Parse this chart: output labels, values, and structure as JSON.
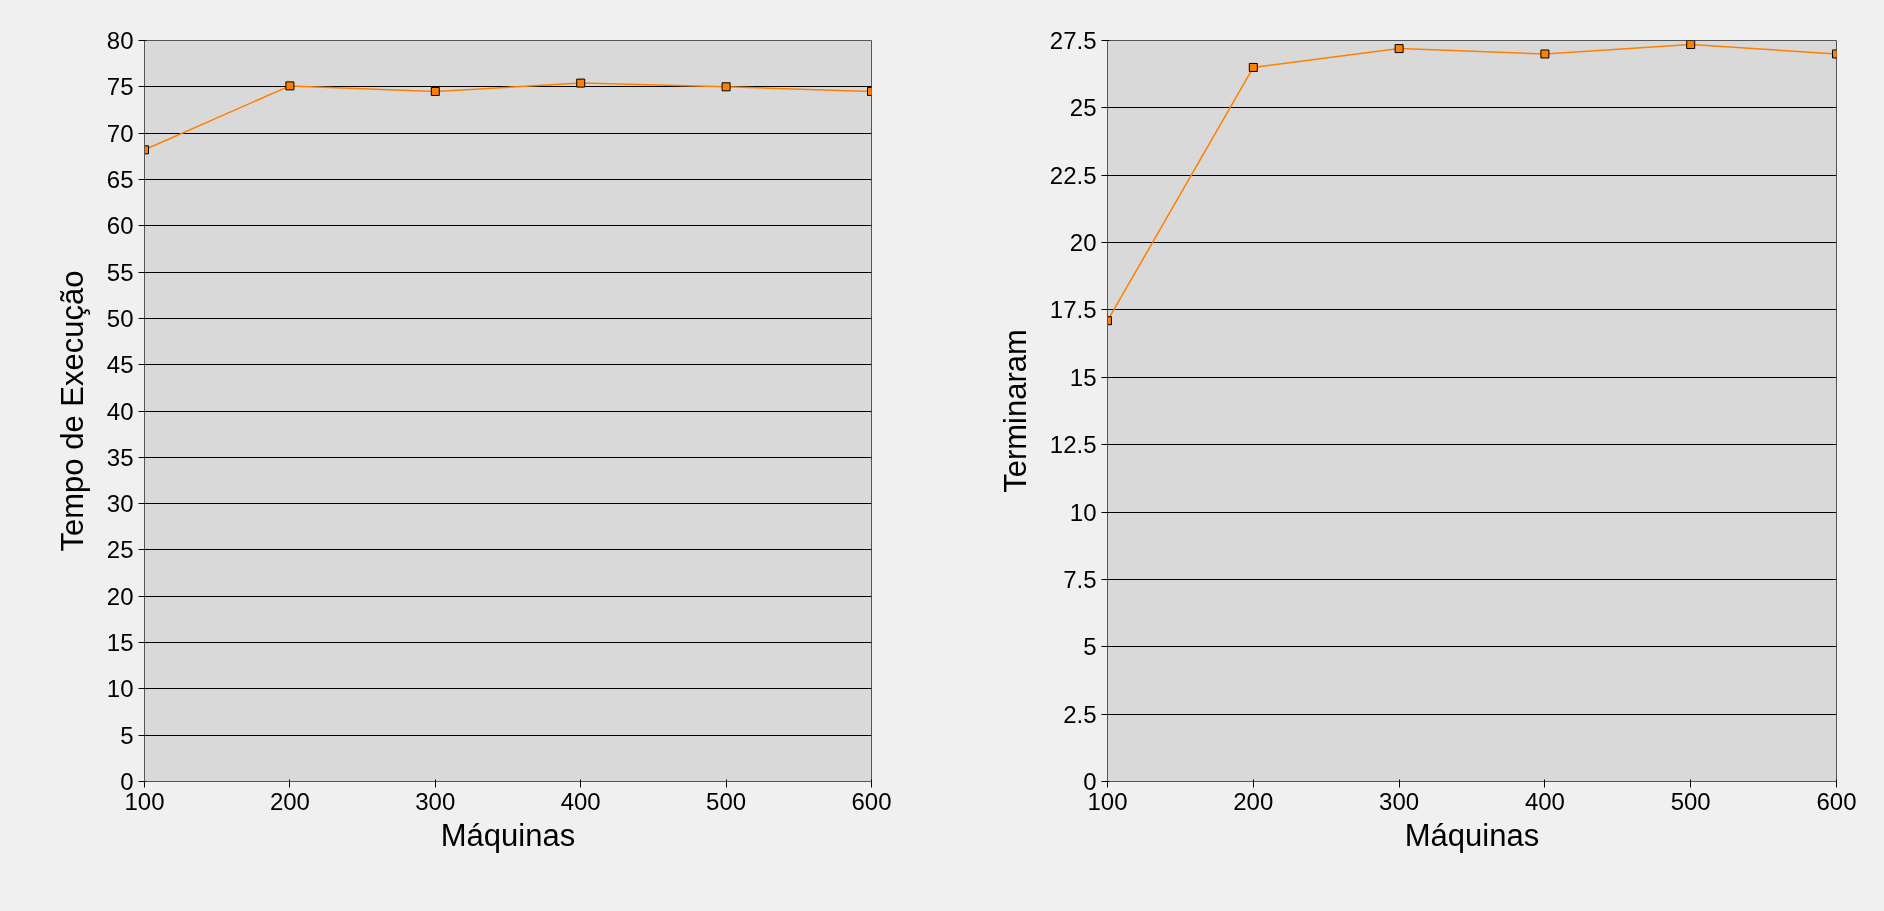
{
  "chart_data": [
    {
      "type": "line",
      "xlabel": "Máquinas",
      "ylabel": "Tempo de Execução",
      "x": [
        100,
        200,
        300,
        400,
        500,
        600
      ],
      "series": [
        {
          "color": "#ff8000",
          "values": [
            68.2,
            75.1,
            74.5,
            75.4,
            75.0,
            74.5
          ]
        }
      ],
      "xlim": [
        100,
        600
      ],
      "xticks": [
        100,
        200,
        300,
        400,
        500,
        600
      ],
      "ylim": [
        0,
        80
      ],
      "yticks": [
        0,
        5,
        10,
        15,
        20,
        25,
        30,
        35,
        40,
        45,
        50,
        55,
        60,
        65,
        70,
        75,
        80
      ],
      "grid": "y",
      "marker": "square"
    },
    {
      "type": "line",
      "xlabel": "Máquinas",
      "ylabel": "Terminaram",
      "x": [
        100,
        200,
        300,
        400,
        500,
        600
      ],
      "series": [
        {
          "color": "#ff8000",
          "values": [
            17.1,
            26.5,
            27.2,
            27.0,
            27.35,
            27.0
          ]
        }
      ],
      "xlim": [
        100,
        600
      ],
      "xticks": [
        100,
        200,
        300,
        400,
        500,
        600
      ],
      "ylim": [
        0,
        27.5
      ],
      "yticks": [
        0,
        2.5,
        5,
        7.5,
        10,
        12.5,
        15,
        17.5,
        20,
        22.5,
        25,
        27.5
      ],
      "grid": "y",
      "marker": "square"
    }
  ]
}
